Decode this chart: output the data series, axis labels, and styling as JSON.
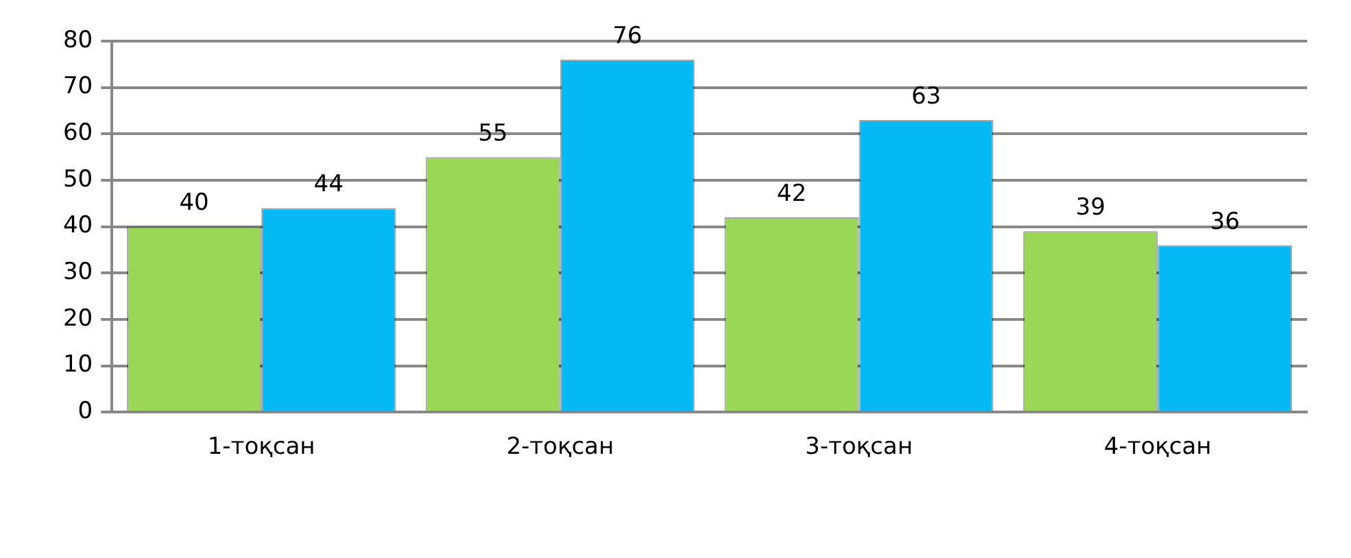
{
  "chart_data": {
    "type": "bar",
    "categories": [
      "1-тоқсан",
      "2-тоқсан",
      "3-тоқсан",
      "4-тоқсан"
    ],
    "series": [
      {
        "color": "#9bd756",
        "values": [
          40,
          55,
          42,
          39
        ]
      },
      {
        "color": "#05b9f5",
        "values": [
          44,
          76,
          63,
          36
        ]
      }
    ],
    "ylim": [
      0,
      80
    ],
    "yticks": [
      0,
      10,
      20,
      30,
      40,
      50,
      60,
      70,
      80
    ],
    "grid": "y",
    "data_labels": true
  }
}
